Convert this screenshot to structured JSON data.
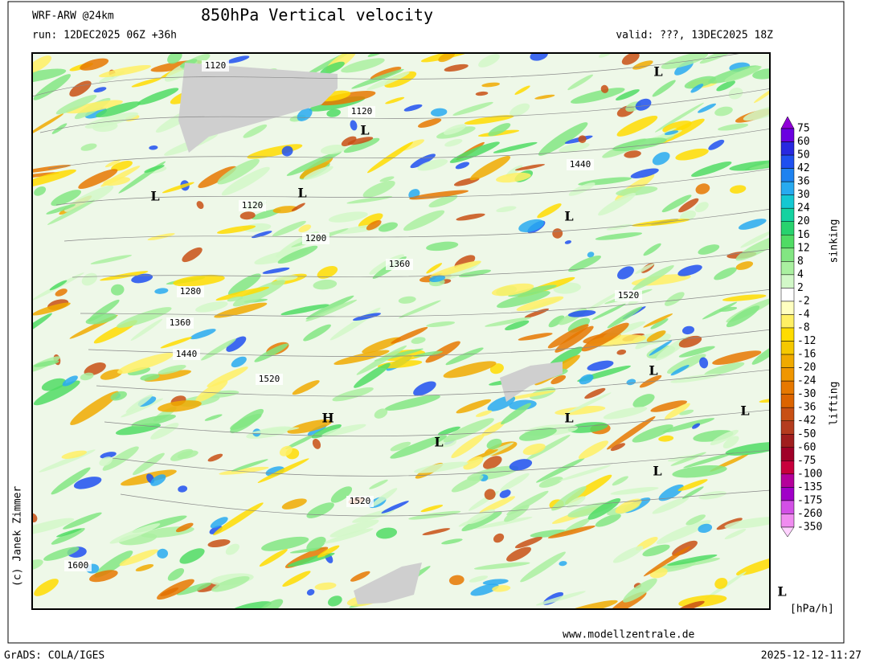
{
  "header": {
    "model": "WRF-ARW @24km",
    "title": "850hPa Vertical velocity",
    "run": "run: 12DEC2025 06Z +36h",
    "valid": "valid: ???, 13DEC2025 18Z"
  },
  "map": {
    "contour_labels": [
      "1120",
      "1120",
      "1440",
      "1120",
      "1200",
      "1360",
      "1520",
      "1280",
      "1360",
      "1440",
      "1520",
      "1520",
      "1600"
    ],
    "pressure_centers": [
      "L",
      "L",
      "L",
      "L",
      "L",
      "L",
      "L",
      "L",
      "L",
      "L",
      "L",
      "H"
    ]
  },
  "colorbar": {
    "labels": [
      75,
      60,
      50,
      42,
      36,
      30,
      24,
      20,
      16,
      12,
      8,
      4,
      2,
      -2,
      -4,
      -8,
      -12,
      -16,
      -20,
      -24,
      -30,
      -36,
      -42,
      -50,
      -60,
      -75,
      -100,
      -135,
      -175,
      -260,
      -350
    ],
    "colors": [
      "#9000d8",
      "#6a00e0",
      "#2828e0",
      "#1e50f0",
      "#1e82f0",
      "#28aaf0",
      "#14c8d2",
      "#14d2a0",
      "#28d26e",
      "#50dc64",
      "#82e682",
      "#aaf0a0",
      "#d2f8c8",
      "#ffffff",
      "#ffffc0",
      "#fff064",
      "#ffdc00",
      "#f5c800",
      "#f0aa00",
      "#f09600",
      "#e67800",
      "#dc6400",
      "#c85014",
      "#b43c1e",
      "#a01e1e",
      "#a00028",
      "#c8003c",
      "#b4009a",
      "#a000c8",
      "#d250e6",
      "#f08cf0",
      "#ffd2ff"
    ],
    "upper": "sinking",
    "lower": "lifting",
    "unit": "[hPa/h]"
  },
  "footer": {
    "copyright": "(c) Janek Zimmer",
    "website": "www.modellzentrale.de",
    "software": "GrADS: COLA/IGES",
    "timestamp": "2025-12-12-11:27"
  }
}
